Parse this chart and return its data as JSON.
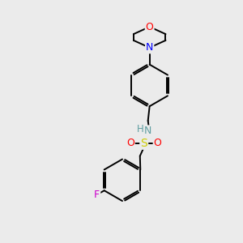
{
  "background_color": "#ebebeb",
  "bond_color": "#000000",
  "atom_colors": {
    "O": "#ff0000",
    "N_morpholine": "#0000ff",
    "N_sulfonamide": "#5f9ea0",
    "S": "#cccc00",
    "F": "#cc00cc",
    "H": "#5f9ea0"
  },
  "figsize": [
    3.0,
    3.0
  ],
  "dpi": 100
}
